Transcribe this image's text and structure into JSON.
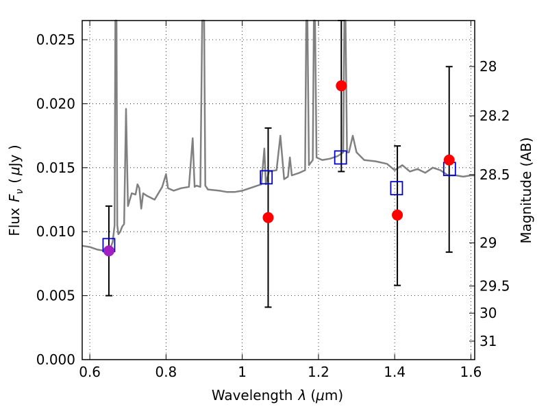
{
  "chart_data": {
    "type": "scatter",
    "xlabel_prefix": "Wavelength",
    "xlabel_symbol": "λ",
    "xlabel_unit_open": "(",
    "xlabel_unit_mu": "μ",
    "xlabel_unit_rest": "m)",
    "ylabel_prefix": "Flux",
    "ylabel_symbol": "F",
    "ylabel_subscript": "ν",
    "ylabel_unit_open": "(",
    "ylabel_unit_mu": "μ",
    "ylabel_unit_rest": "Jy )",
    "y2label": "Magnitude (AB)",
    "xlim": [
      0.58,
      1.61
    ],
    "ylim": [
      0.0,
      0.0265
    ],
    "grid": true,
    "xticks": [
      {
        "value": 0.6,
        "label": "0.6"
      },
      {
        "value": 0.8,
        "label": "0.8"
      },
      {
        "value": 1.0,
        "label": "1"
      },
      {
        "value": 1.2,
        "label": "1.2"
      },
      {
        "value": 1.4,
        "label": "1.4"
      },
      {
        "value": 1.6,
        "label": "1.6"
      }
    ],
    "yticks": [
      {
        "value": 0.0,
        "label": "0.000"
      },
      {
        "value": 0.005,
        "label": "0.005"
      },
      {
        "value": 0.01,
        "label": "0.010"
      },
      {
        "value": 0.015,
        "label": "0.015"
      },
      {
        "value": 0.02,
        "label": "0.020"
      },
      {
        "value": 0.025,
        "label": "0.025"
      }
    ],
    "y2ticks": [
      {
        "value": 28.0,
        "label": "28"
      },
      {
        "value": 28.2,
        "label": "28.2"
      },
      {
        "value": 28.5,
        "label": "28.5"
      },
      {
        "value": 29.0,
        "label": "29"
      },
      {
        "value": 29.5,
        "label": "29.5"
      },
      {
        "value": 30.0,
        "label": "30"
      },
      {
        "value": 31.0,
        "label": "31"
      }
    ],
    "spectrum_color": "#808080",
    "spectrum": {
      "x": [
        0.58,
        0.6,
        0.62,
        0.64,
        0.655,
        0.66,
        0.665,
        0.667,
        0.67,
        0.672,
        0.675,
        0.68,
        0.685,
        0.69,
        0.695,
        0.7,
        0.71,
        0.72,
        0.725,
        0.73,
        0.735,
        0.74,
        0.75,
        0.77,
        0.79,
        0.8,
        0.805,
        0.82,
        0.84,
        0.86,
        0.87,
        0.875,
        0.88,
        0.89,
        0.895,
        0.897,
        0.9,
        0.903,
        0.91,
        0.94,
        0.96,
        0.98,
        1.0,
        1.02,
        1.05,
        1.058,
        1.062,
        1.07,
        1.09,
        1.1,
        1.11,
        1.12,
        1.125,
        1.13,
        1.15,
        1.165,
        1.168,
        1.171,
        1.175,
        1.185,
        1.188,
        1.191,
        1.195,
        1.21,
        1.23,
        1.25,
        1.265,
        1.268,
        1.271,
        1.275,
        1.28,
        1.29,
        1.3,
        1.31,
        1.32,
        1.35,
        1.38,
        1.4,
        1.42,
        1.44,
        1.46,
        1.48,
        1.5,
        1.52,
        1.54,
        1.56,
        1.58,
        1.6,
        1.61
      ],
      "y": [
        0.0089,
        0.0088,
        0.0086,
        0.0085,
        0.0088,
        0.0092,
        0.0105,
        0.0265,
        0.0265,
        0.0105,
        0.0098,
        0.01,
        0.0104,
        0.0106,
        0.0196,
        0.012,
        0.013,
        0.0129,
        0.0137,
        0.0134,
        0.0118,
        0.013,
        0.0128,
        0.0125,
        0.0135,
        0.0145,
        0.0134,
        0.0132,
        0.0134,
        0.0135,
        0.0173,
        0.0135,
        0.0136,
        0.0135,
        0.0265,
        0.0265,
        0.0265,
        0.0136,
        0.0133,
        0.0132,
        0.0131,
        0.0131,
        0.0132,
        0.0134,
        0.0137,
        0.0165,
        0.0137,
        0.0147,
        0.0148,
        0.0175,
        0.0141,
        0.0143,
        0.0158,
        0.0144,
        0.0146,
        0.0148,
        0.0265,
        0.0265,
        0.0152,
        0.0156,
        0.0265,
        0.0265,
        0.0158,
        0.0156,
        0.0157,
        0.0159,
        0.0162,
        0.0265,
        0.0265,
        0.0162,
        0.0162,
        0.0175,
        0.0162,
        0.0159,
        0.0156,
        0.0155,
        0.0153,
        0.0148,
        0.0152,
        0.0147,
        0.0149,
        0.0146,
        0.015,
        0.0148,
        0.0144,
        0.0144,
        0.0143,
        0.0144,
        0.0144
      ]
    },
    "model_points": {
      "color": "#0000cc",
      "x": [
        0.65,
        1.063,
        1.258,
        1.405,
        1.544
      ],
      "y": [
        0.00895,
        0.01425,
        0.0158,
        0.0134,
        0.0149
      ]
    },
    "observed_points": {
      "color": "#ff0000",
      "x": [
        1.068,
        1.26,
        1.407,
        1.543
      ],
      "y": [
        0.0111,
        0.0214,
        0.0113,
        0.0156
      ],
      "yerr_low": [
        0.0041,
        0.0147,
        0.0058,
        0.0084
      ],
      "yerr_high": [
        0.0181,
        0.0265,
        0.0167,
        0.0229
      ]
    },
    "highlight_point": {
      "color": "#a020c0",
      "x": 0.65,
      "y": 0.0085,
      "yerr_low": 0.005,
      "yerr_high": 0.012
    }
  }
}
